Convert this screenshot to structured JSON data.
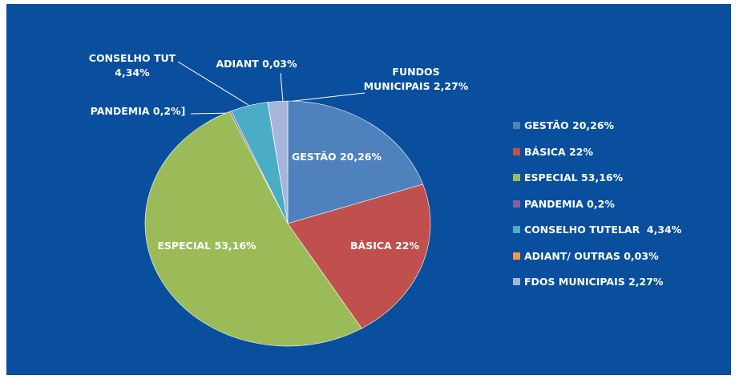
{
  "chart_data": {
    "type": "pie",
    "categories": [
      "GESTÃO 20,26%",
      "BÁSICA 22%",
      "ESPECIAL 53,16%",
      "PANDEMIA 0,2%",
      "CONSELHO TUTELAR  4,34%",
      "ADIANT/ OUTRAS 0,03%",
      "FDOS MUNICIPAIS 2,27%"
    ],
    "values": [
      20.26,
      22,
      53.16,
      0.2,
      4.34,
      0.03,
      2.27
    ],
    "value_labels": [
      "GESTÃO 20,26%",
      "BÁSICA 22%",
      "ESPECIAL 53,16%",
      "PANDEMIA 0,2%]",
      "CONSELHO TUT\n4,34%",
      "ADIANT 0,03%",
      "FUNDOS\nMUNICIPAIS 2,27%"
    ],
    "colors": [
      "#4f81bd",
      "#c0504d",
      "#9bbb59",
      "#8064a2",
      "#4bacc6",
      "#f79646",
      "#a5b5dc"
    ],
    "legend": "right"
  }
}
